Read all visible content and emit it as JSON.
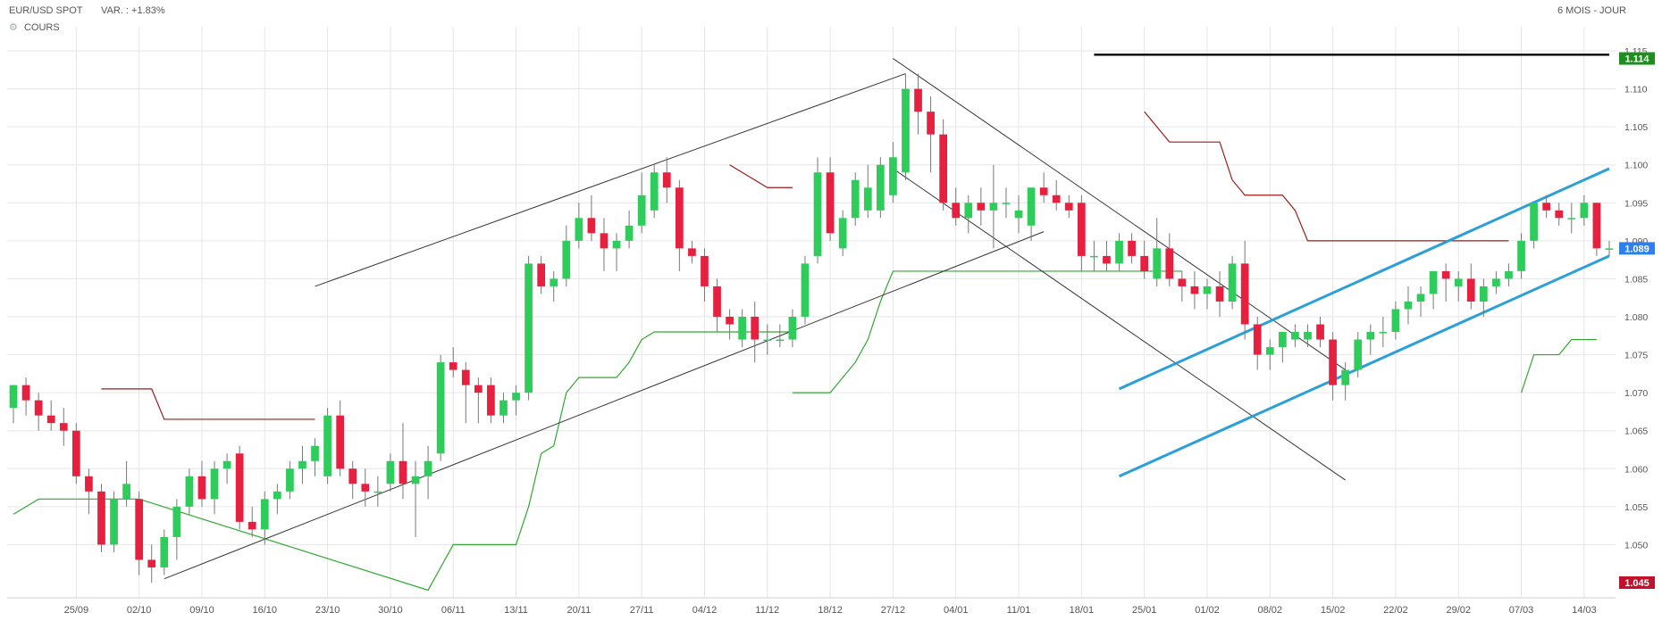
{
  "header": {
    "instrument": "EUR/USD SPOT",
    "variation": "VAR. : +1.83%",
    "period": "6 MOIS - JOUR",
    "series_label": "COURS",
    "settings_icon": "gear-icon"
  },
  "chart_data": {
    "type": "candlestick",
    "ylim": [
      1.043,
      1.117
    ],
    "ytick_values": [
      1.05,
      1.055,
      1.06,
      1.065,
      1.07,
      1.075,
      1.08,
      1.085,
      1.09,
      1.095,
      1.1,
      1.105,
      1.11,
      1.115
    ],
    "ytick_labels": [
      "1.050",
      "1.055",
      "1.060",
      "1.065",
      "1.070",
      "1.075",
      "1.080",
      "1.085",
      "1.090",
      "1.095",
      "1.100",
      "1.105",
      "1.110",
      "1.115"
    ],
    "xtick_labels": [
      "25/09",
      "02/10",
      "09/10",
      "16/10",
      "23/10",
      "30/10",
      "06/11",
      "13/11",
      "20/11",
      "27/11",
      "04/12",
      "11/12",
      "18/12",
      "27/12",
      "04/01",
      "11/01",
      "18/01",
      "25/01",
      "01/02",
      "08/02",
      "15/02",
      "22/02",
      "29/02",
      "07/03",
      "14/03"
    ],
    "xtick_index": [
      5,
      10,
      15,
      20,
      25,
      30,
      35,
      40,
      45,
      50,
      55,
      60,
      65,
      70,
      75,
      80,
      85,
      90,
      95,
      100,
      105,
      110,
      115,
      120,
      125
    ],
    "badges": [
      {
        "value": 1.114,
        "label": "1.114",
        "color": "#1e8e1e"
      },
      {
        "value": 1.089,
        "label": "1.089",
        "color": "#2f80ed"
      },
      {
        "value": 1.045,
        "label": "1.045",
        "color": "#c0122c"
      }
    ],
    "colors": {
      "up": "#2ecc5a",
      "down": "#e8203f",
      "bull_line": "#2fa82f",
      "bear_line": "#9b1b1b",
      "channel": "#2a9fd8",
      "trend": "#333333",
      "resistance": "#000000",
      "grid": "#e6e6e6"
    },
    "candles": [
      [
        1.068,
        1.071,
        1.066,
        1.071
      ],
      [
        1.071,
        1.072,
        1.067,
        1.069
      ],
      [
        1.069,
        1.07,
        1.065,
        1.067
      ],
      [
        1.067,
        1.069,
        1.065,
        1.066
      ],
      [
        1.066,
        1.068,
        1.063,
        1.065
      ],
      [
        1.065,
        1.066,
        1.058,
        1.059
      ],
      [
        1.059,
        1.06,
        1.054,
        1.057
      ],
      [
        1.057,
        1.058,
        1.049,
        1.05
      ],
      [
        1.05,
        1.057,
        1.049,
        1.056
      ],
      [
        1.056,
        1.061,
        1.055,
        1.058
      ],
      [
        1.056,
        1.057,
        1.046,
        1.048
      ],
      [
        1.048,
        1.05,
        1.045,
        1.047
      ],
      [
        1.047,
        1.052,
        1.046,
        1.051
      ],
      [
        1.051,
        1.056,
        1.048,
        1.055
      ],
      [
        1.055,
        1.06,
        1.054,
        1.059
      ],
      [
        1.059,
        1.061,
        1.055,
        1.056
      ],
      [
        1.056,
        1.061,
        1.054,
        1.06
      ],
      [
        1.06,
        1.062,
        1.058,
        1.061
      ],
      [
        1.062,
        1.063,
        1.052,
        1.053
      ],
      [
        1.053,
        1.055,
        1.051,
        1.052
      ],
      [
        1.052,
        1.057,
        1.05,
        1.056
      ],
      [
        1.056,
        1.058,
        1.054,
        1.057
      ],
      [
        1.057,
        1.061,
        1.056,
        1.06
      ],
      [
        1.06,
        1.063,
        1.058,
        1.061
      ],
      [
        1.061,
        1.064,
        1.059,
        1.063
      ],
      [
        1.059,
        1.068,
        1.058,
        1.067
      ],
      [
        1.067,
        1.069,
        1.059,
        1.06
      ],
      [
        1.06,
        1.061,
        1.056,
        1.058
      ],
      [
        1.058,
        1.06,
        1.055,
        1.057
      ],
      [
        1.057,
        1.059,
        1.055,
        1.057
      ],
      [
        1.058,
        1.062,
        1.057,
        1.061
      ],
      [
        1.061,
        1.066,
        1.056,
        1.058
      ],
      [
        1.058,
        1.061,
        1.051,
        1.059
      ],
      [
        1.059,
        1.063,
        1.056,
        1.061
      ],
      [
        1.062,
        1.075,
        1.061,
        1.074
      ],
      [
        1.074,
        1.076,
        1.072,
        1.073
      ],
      [
        1.073,
        1.074,
        1.066,
        1.071
      ],
      [
        1.071,
        1.072,
        1.066,
        1.07
      ],
      [
        1.071,
        1.072,
        1.066,
        1.067
      ],
      [
        1.067,
        1.07,
        1.066,
        1.069
      ],
      [
        1.069,
        1.071,
        1.067,
        1.07
      ],
      [
        1.07,
        1.088,
        1.069,
        1.087
      ],
      [
        1.087,
        1.088,
        1.083,
        1.084
      ],
      [
        1.084,
        1.086,
        1.082,
        1.085
      ],
      [
        1.085,
        1.092,
        1.084,
        1.09
      ],
      [
        1.09,
        1.095,
        1.089,
        1.093
      ],
      [
        1.093,
        1.096,
        1.09,
        1.091
      ],
      [
        1.091,
        1.093,
        1.086,
        1.089
      ],
      [
        1.089,
        1.091,
        1.086,
        1.09
      ],
      [
        1.09,
        1.094,
        1.089,
        1.092
      ],
      [
        1.092,
        1.099,
        1.091,
        1.096
      ],
      [
        1.094,
        1.1,
        1.093,
        1.099
      ],
      [
        1.099,
        1.101,
        1.095,
        1.097
      ],
      [
        1.097,
        1.098,
        1.086,
        1.089
      ],
      [
        1.089,
        1.09,
        1.087,
        1.088
      ],
      [
        1.088,
        1.089,
        1.082,
        1.084
      ],
      [
        1.084,
        1.085,
        1.078,
        1.08
      ],
      [
        1.08,
        1.081,
        1.077,
        1.079
      ],
      [
        1.077,
        1.081,
        1.076,
        1.08
      ],
      [
        1.08,
        1.082,
        1.074,
        1.077
      ],
      [
        1.077,
        1.079,
        1.075,
        1.077
      ],
      [
        1.077,
        1.079,
        1.076,
        1.077
      ],
      [
        1.077,
        1.081,
        1.076,
        1.08
      ],
      [
        1.08,
        1.088,
        1.079,
        1.087
      ],
      [
        1.088,
        1.101,
        1.087,
        1.099
      ],
      [
        1.099,
        1.101,
        1.09,
        1.091
      ],
      [
        1.089,
        1.094,
        1.088,
        1.093
      ],
      [
        1.093,
        1.099,
        1.092,
        1.098
      ],
      [
        1.094,
        1.1,
        1.093,
        1.097
      ],
      [
        1.094,
        1.101,
        1.093,
        1.1
      ],
      [
        1.096,
        1.103,
        1.095,
        1.101
      ],
      [
        1.099,
        1.112,
        1.098,
        1.11
      ],
      [
        1.11,
        1.112,
        1.104,
        1.107
      ],
      [
        1.107,
        1.109,
        1.099,
        1.104
      ],
      [
        1.104,
        1.106,
        1.094,
        1.095
      ],
      [
        1.095,
        1.097,
        1.092,
        1.093
      ],
      [
        1.093,
        1.096,
        1.091,
        1.095
      ],
      [
        1.095,
        1.097,
        1.092,
        1.094
      ],
      [
        1.094,
        1.1,
        1.089,
        1.095
      ],
      [
        1.095,
        1.097,
        1.093,
        1.095
      ],
      [
        1.093,
        1.096,
        1.091,
        1.094
      ],
      [
        1.092,
        1.097,
        1.09,
        1.097
      ],
      [
        1.097,
        1.099,
        1.095,
        1.096
      ],
      [
        1.096,
        1.098,
        1.094,
        1.095
      ],
      [
        1.095,
        1.096,
        1.093,
        1.094
      ],
      [
        1.095,
        1.096,
        1.086,
        1.088
      ],
      [
        1.088,
        1.09,
        1.086,
        1.088
      ],
      [
        1.088,
        1.09,
        1.086,
        1.087
      ],
      [
        1.087,
        1.091,
        1.086,
        1.09
      ],
      [
        1.09,
        1.091,
        1.087,
        1.088
      ],
      [
        1.088,
        1.09,
        1.085,
        1.086
      ],
      [
        1.085,
        1.093,
        1.084,
        1.089
      ],
      [
        1.089,
        1.091,
        1.084,
        1.085
      ],
      [
        1.085,
        1.086,
        1.082,
        1.084
      ],
      [
        1.084,
        1.086,
        1.081,
        1.083
      ],
      [
        1.083,
        1.085,
        1.081,
        1.084
      ],
      [
        1.084,
        1.086,
        1.08,
        1.082
      ],
      [
        1.082,
        1.088,
        1.081,
        1.087
      ],
      [
        1.087,
        1.09,
        1.077,
        1.079
      ],
      [
        1.079,
        1.08,
        1.073,
        1.075
      ],
      [
        1.075,
        1.077,
        1.073,
        1.076
      ],
      [
        1.076,
        1.078,
        1.074,
        1.078
      ],
      [
        1.077,
        1.079,
        1.076,
        1.078
      ],
      [
        1.077,
        1.079,
        1.076,
        1.078
      ],
      [
        1.079,
        1.08,
        1.076,
        1.077
      ],
      [
        1.077,
        1.078,
        1.069,
        1.071
      ],
      [
        1.071,
        1.074,
        1.069,
        1.073
      ],
      [
        1.073,
        1.078,
        1.072,
        1.077
      ],
      [
        1.077,
        1.079,
        1.075,
        1.078
      ],
      [
        1.078,
        1.08,
        1.076,
        1.078
      ],
      [
        1.078,
        1.082,
        1.077,
        1.081
      ],
      [
        1.081,
        1.084,
        1.079,
        1.082
      ],
      [
        1.082,
        1.084,
        1.08,
        1.083
      ],
      [
        1.083,
        1.086,
        1.081,
        1.086
      ],
      [
        1.086,
        1.087,
        1.082,
        1.085
      ],
      [
        1.084,
        1.086,
        1.082,
        1.085
      ],
      [
        1.085,
        1.087,
        1.081,
        1.082
      ],
      [
        1.082,
        1.085,
        1.08,
        1.084
      ],
      [
        1.084,
        1.086,
        1.083,
        1.085
      ],
      [
        1.085,
        1.087,
        1.084,
        1.086
      ],
      [
        1.086,
        1.091,
        1.085,
        1.09
      ],
      [
        1.09,
        1.095,
        1.089,
        1.095
      ],
      [
        1.095,
        1.096,
        1.093,
        1.094
      ],
      [
        1.094,
        1.095,
        1.092,
        1.093
      ],
      [
        1.093,
        1.095,
        1.091,
        1.093
      ],
      [
        1.093,
        1.096,
        1.092,
        1.095
      ],
      [
        1.095,
        1.095,
        1.088,
        1.089
      ],
      [
        1.089,
        1.09,
        1.088,
        1.089
      ]
    ],
    "bear_trend_line": [
      [
        1.0705,
        1.0705
      ],
      [
        1.0705,
        1.0705
      ],
      [
        1.0705,
        1.0705
      ],
      [
        1.0705,
        1.0705
      ],
      [
        1.0705,
        1.0705
      ],
      [
        1.0705,
        1.0705
      ],
      [
        1.067,
        1.067
      ],
      [
        1.0665,
        1.0665
      ],
      [
        1.0665,
        1.0665
      ],
      [
        1.0665,
        1.0665
      ],
      [
        1.0665,
        1.0665
      ],
      [
        1.0665,
        1.0665
      ],
      [
        1.0665,
        1.0665
      ],
      [
        1.0665,
        1.0665
      ],
      [
        1.0665,
        1.0665
      ],
      [
        1.0665,
        1.0665
      ],
      [
        1.0665,
        1.0665
      ],
      [
        1.0665,
        1.0665
      ],
      [
        1.0665,
        1.0665
      ],
      [
        1.0665,
        1.0665
      ],
      [
        1.0665,
        1.0665
      ],
      [
        1.0665,
        1.0665
      ],
      [
        1.0665,
        1.0665
      ],
      [
        1.0665,
        1.0665
      ]
    ]
  }
}
